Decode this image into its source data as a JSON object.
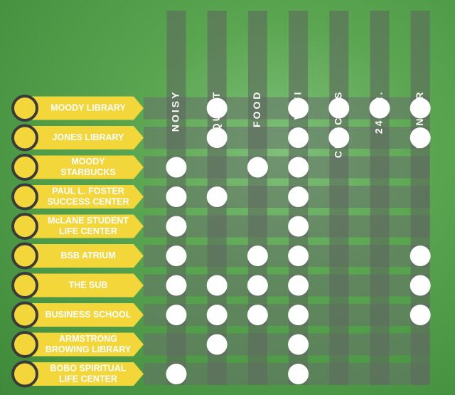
{
  "chart_data": {
    "type": "table",
    "columns": [
      "NOISY",
      "QUIET",
      "FOOD",
      "WIFI",
      "CUBICLES",
      "24 HR.",
      "PRINTER"
    ],
    "rows": [
      {
        "label": [
          "MOODY LIBRARY"
        ],
        "marks": [
          0,
          1,
          0,
          1,
          1,
          1,
          1
        ]
      },
      {
        "label": [
          "JONES LIBRARY"
        ],
        "marks": [
          0,
          1,
          0,
          1,
          1,
          0,
          1
        ]
      },
      {
        "label": [
          "MOODY",
          "STARBUCKS"
        ],
        "marks": [
          1,
          0,
          1,
          1,
          0,
          0,
          0
        ]
      },
      {
        "label": [
          "PAUL L. FOSTER",
          "SUCCESS CENTER"
        ],
        "marks": [
          1,
          1,
          0,
          1,
          0,
          0,
          0
        ]
      },
      {
        "label": [
          "McLANE STUDENT",
          "LIFE CENTER"
        ],
        "marks": [
          1,
          0,
          0,
          1,
          0,
          0,
          0
        ]
      },
      {
        "label": [
          "BSB ATRIUM"
        ],
        "marks": [
          1,
          0,
          1,
          1,
          0,
          0,
          1
        ]
      },
      {
        "label": [
          "THE SUB"
        ],
        "marks": [
          1,
          1,
          1,
          1,
          0,
          0,
          1
        ]
      },
      {
        "label": [
          "BUSINESS SCHOOL"
        ],
        "marks": [
          1,
          1,
          1,
          1,
          0,
          0,
          1
        ]
      },
      {
        "label": [
          "ARMSTRONG",
          "BROWING LIBRARY"
        ],
        "marks": [
          0,
          1,
          0,
          1,
          0,
          0,
          0
        ]
      },
      {
        "label": [
          "BOBO SPIRITUAL",
          "LIFE CENTER"
        ],
        "marks": [
          1,
          0,
          0,
          1,
          0,
          0,
          0
        ]
      }
    ],
    "colors": {
      "label_fill": "#f2d63a",
      "label_text": "#ffffff",
      "circle_outline": "#3a3a3a",
      "column_band": "#5e6a5e",
      "row_band": "#66706a",
      "mark": "#ffffff"
    }
  }
}
